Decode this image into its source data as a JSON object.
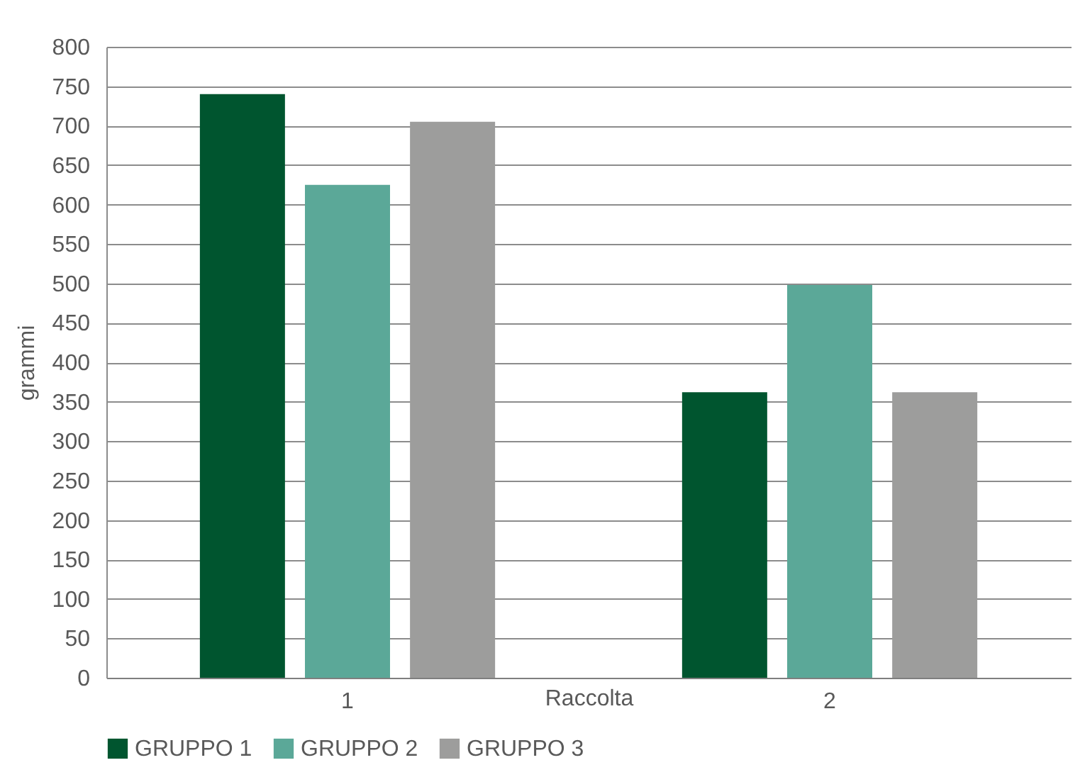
{
  "chart_data": {
    "type": "bar",
    "xlabel": "Raccolta",
    "ylabel": "grammi",
    "categories": [
      "1",
      "2"
    ],
    "series": [
      {
        "name": "GRUPPO 1",
        "color": "#00552f",
        "values": [
          740,
          362
        ]
      },
      {
        "name": "GRUPPO 2",
        "color": "#5ba898",
        "values": [
          625,
          498
        ]
      },
      {
        "name": "GRUPPO 3",
        "color": "#9d9d9c",
        "values": [
          705,
          362
        ]
      }
    ],
    "ylim": [
      0,
      800
    ],
    "yticks": [
      0,
      50,
      100,
      150,
      200,
      250,
      300,
      350,
      400,
      450,
      500,
      550,
      600,
      650,
      700,
      750,
      800
    ],
    "grid": "y",
    "legend": "bottom"
  }
}
